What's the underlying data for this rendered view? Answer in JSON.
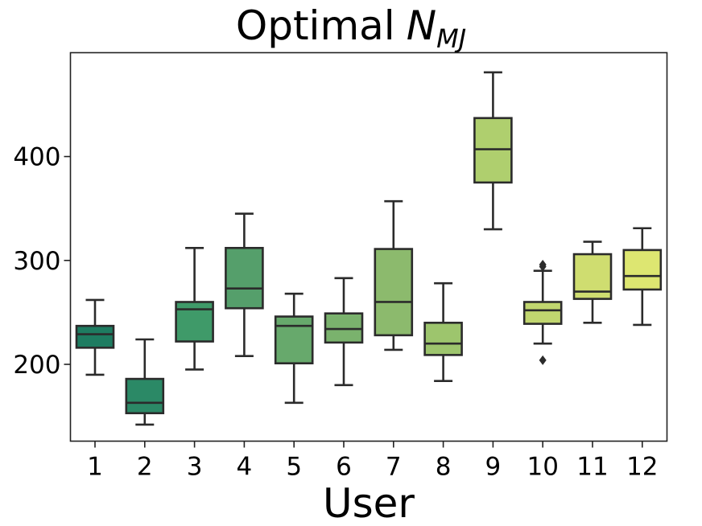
{
  "chart_data": {
    "type": "box",
    "title": "Optimal",
    "title_symbol": "N",
    "title_subscript": "MJ",
    "xlabel": "User",
    "ylabel": "",
    "ylim": [
      125,
      500
    ],
    "yticks": [
      200,
      300,
      400
    ],
    "categories": [
      "1",
      "2",
      "3",
      "4",
      "5",
      "6",
      "7",
      "8",
      "9",
      "10",
      "11",
      "12"
    ],
    "boxes": [
      {
        "category": "1",
        "whisker_low": 190,
        "q1": 216,
        "median": 229,
        "q3": 237,
        "whisker_high": 262,
        "outliers": [],
        "color": "#1e7c61"
      },
      {
        "category": "2",
        "whisker_low": 142,
        "q1": 153,
        "median": 163,
        "q3": 186,
        "whisker_high": 224,
        "outliers": [],
        "color": "#2b8966"
      },
      {
        "category": "3",
        "whisker_low": 195,
        "q1": 222,
        "median": 253,
        "q3": 260,
        "whisker_high": 312,
        "outliers": [],
        "color": "#3f9a69"
      },
      {
        "category": "4",
        "whisker_low": 208,
        "q1": 254,
        "median": 273,
        "q3": 312,
        "whisker_high": 345,
        "outliers": [],
        "color": "#559f6b"
      },
      {
        "category": "5",
        "whisker_low": 163,
        "q1": 201,
        "median": 237,
        "q3": 246,
        "whisker_high": 268,
        "outliers": [],
        "color": "#67a96c"
      },
      {
        "category": "6",
        "whisker_low": 180,
        "q1": 221,
        "median": 234,
        "q3": 249,
        "whisker_high": 283,
        "outliers": [],
        "color": "#7ab26d"
      },
      {
        "category": "7",
        "whisker_low": 214,
        "q1": 228,
        "median": 260,
        "q3": 311,
        "whisker_high": 357,
        "outliers": [],
        "color": "#8cba6d"
      },
      {
        "category": "8",
        "whisker_low": 184,
        "q1": 209,
        "median": 220,
        "q3": 240,
        "whisker_high": 278,
        "outliers": [],
        "color": "#9dc56d"
      },
      {
        "category": "9",
        "whisker_low": 330,
        "q1": 375,
        "median": 407,
        "q3": 437,
        "whisker_high": 481,
        "outliers": [],
        "color": "#afcf6e"
      },
      {
        "category": "10",
        "whisker_low": 220,
        "q1": 239,
        "median": 252,
        "q3": 260,
        "whisker_high": 290,
        "outliers": [
          296,
          294,
          204
        ],
        "color": "#c1d66f"
      },
      {
        "category": "11",
        "whisker_low": 240,
        "q1": 263,
        "median": 270,
        "q3": 306,
        "whisker_high": 318,
        "outliers": [],
        "color": "#cfdd70"
      },
      {
        "category": "12",
        "whisker_low": 238,
        "q1": 272,
        "median": 285,
        "q3": 310,
        "whisker_high": 331,
        "outliers": [],
        "color": "#dde671"
      }
    ],
    "grid": false,
    "legend": "none"
  }
}
